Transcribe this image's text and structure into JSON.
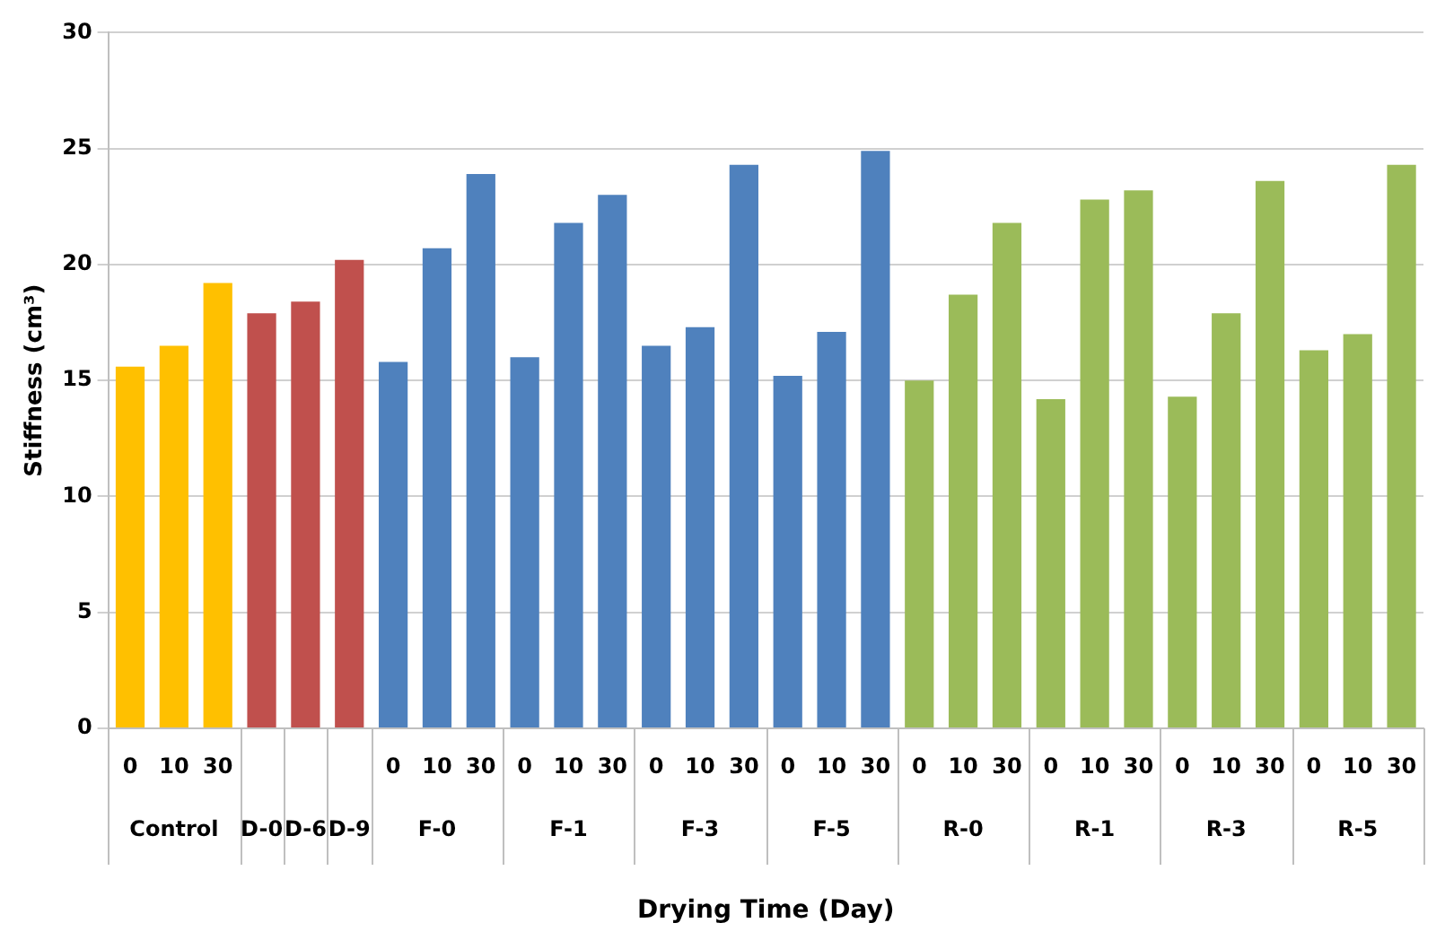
{
  "chart_data": {
    "type": "bar",
    "xlabel": "Drying Time (Day)",
    "ylabel": "Stiffness (cm³)",
    "categories": [
      "0",
      "10",
      "30",
      null,
      null,
      null,
      "0",
      "10",
      "30",
      "0",
      "10",
      "30",
      "0",
      "10",
      "30",
      "0",
      "10",
      "30",
      "0",
      "10",
      "30",
      "0",
      "10",
      "30",
      "0",
      "10",
      "30",
      "0",
      "10",
      "30"
    ],
    "series": [
      {
        "color": "#ffc000",
        "values": [
          15.6,
          16.5,
          19.2,
          null,
          null,
          null,
          null,
          null,
          null,
          null,
          null,
          null,
          null,
          null,
          null,
          null,
          null,
          null,
          null,
          null,
          null,
          null,
          null,
          null,
          null,
          null,
          null,
          null,
          null,
          null
        ]
      },
      {
        "color": "#c0504d",
        "values": [
          null,
          null,
          null,
          17.9,
          null,
          null,
          null,
          null,
          null,
          null,
          null,
          null,
          null,
          null,
          null,
          null,
          null,
          null,
          null,
          null,
          null,
          null,
          null,
          null,
          null,
          null,
          null,
          null,
          null,
          null
        ]
      },
      {
        "color": "#c0504d",
        "values": [
          null,
          null,
          null,
          null,
          18.4,
          null,
          null,
          null,
          null,
          null,
          null,
          null,
          null,
          null,
          null,
          null,
          null,
          null,
          null,
          null,
          null,
          null,
          null,
          null,
          null,
          null,
          null,
          null,
          null,
          null
        ]
      },
      {
        "color": "#c0504d",
        "values": [
          null,
          null,
          null,
          null,
          null,
          20.2,
          null,
          null,
          null,
          null,
          null,
          null,
          null,
          null,
          null,
          null,
          null,
          null,
          null,
          null,
          null,
          null,
          null,
          null,
          null,
          null,
          null,
          null,
          null,
          null
        ]
      },
      {
        "color": "#4f81bd",
        "values": [
          null,
          null,
          null,
          null,
          null,
          null,
          15.8,
          20.7,
          23.9,
          null,
          null,
          null,
          null,
          null,
          null,
          null,
          null,
          null,
          null,
          null,
          null,
          null,
          null,
          null,
          null,
          null,
          null,
          null,
          null,
          null
        ]
      },
      {
        "color": "#4f81bd",
        "values": [
          null,
          null,
          null,
          null,
          null,
          null,
          null,
          null,
          null,
          16.0,
          21.8,
          23.0,
          null,
          null,
          null,
          null,
          null,
          null,
          null,
          null,
          null,
          null,
          null,
          null,
          null,
          null,
          null,
          null,
          null,
          null
        ]
      },
      {
        "color": "#4f81bd",
        "values": [
          null,
          null,
          null,
          null,
          null,
          null,
          null,
          null,
          null,
          null,
          null,
          null,
          16.5,
          17.3,
          24.3,
          null,
          null,
          null,
          null,
          null,
          null,
          null,
          null,
          null,
          null,
          null,
          null,
          null,
          null,
          null
        ]
      },
      {
        "color": "#4f81bd",
        "values": [
          null,
          null,
          null,
          null,
          null,
          null,
          null,
          null,
          null,
          null,
          null,
          null,
          null,
          null,
          null,
          15.2,
          17.1,
          24.9,
          null,
          null,
          null,
          null,
          null,
          null,
          null,
          null,
          null,
          null,
          null,
          null
        ]
      },
      {
        "color": "#9bbb59",
        "values": [
          null,
          null,
          null,
          null,
          null,
          null,
          null,
          null,
          null,
          null,
          null,
          null,
          null,
          null,
          null,
          null,
          null,
          null,
          15.0,
          18.7,
          21.8,
          null,
          null,
          null,
          null,
          null,
          null,
          null,
          null,
          null
        ]
      },
      {
        "color": "#9bbb59",
        "values": [
          null,
          null,
          null,
          null,
          null,
          null,
          null,
          null,
          null,
          null,
          null,
          null,
          null,
          null,
          null,
          null,
          null,
          null,
          null,
          null,
          null,
          14.2,
          22.8,
          23.2,
          null,
          null,
          null,
          null,
          null,
          null
        ]
      },
      {
        "color": "#9bbb59",
        "values": [
          null,
          null,
          null,
          null,
          null,
          null,
          null,
          null,
          null,
          null,
          null,
          null,
          null,
          null,
          null,
          null,
          null,
          null,
          null,
          null,
          null,
          null,
          null,
          null,
          14.3,
          17.9,
          23.6,
          null,
          null,
          null
        ]
      },
      {
        "color": "#9bbb59",
        "values": [
          null,
          null,
          null,
          null,
          null,
          null,
          null,
          null,
          null,
          null,
          null,
          null,
          null,
          null,
          null,
          null,
          null,
          null,
          null,
          null,
          null,
          null,
          null,
          null,
          null,
          null,
          null,
          16.3,
          17.0,
          24.3
        ]
      }
    ],
    "ylim": [
      0,
      30
    ],
    "yticks": [
      0,
      5,
      10,
      15,
      20,
      25,
      30
    ],
    "annotations": [
      "Control",
      "D-0",
      "D-6",
      "D-9",
      "F-0",
      "F-1",
      "F-3",
      "F-5",
      "R-0",
      "R-1",
      "R-3",
      "R-5"
    ],
    "grid": "y",
    "legend": false
  }
}
